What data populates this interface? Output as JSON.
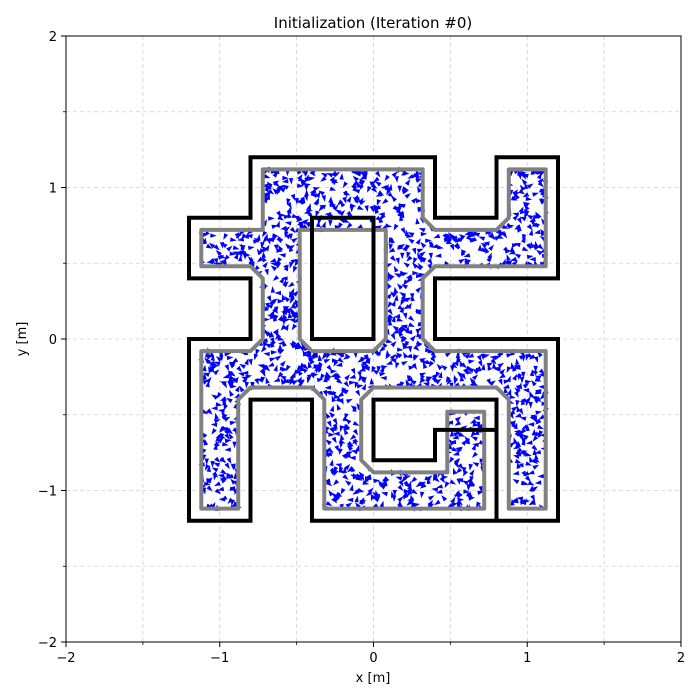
{
  "chart_data": {
    "type": "scatter",
    "title": "Initialization (Iteration #0)",
    "xlabel": "x [m]",
    "ylabel": "y [m]",
    "xlim": [
      -2,
      2
    ],
    "ylim": [
      -2,
      2
    ],
    "grid": true,
    "xticks": [
      {
        "value": -2,
        "label": "−2"
      },
      {
        "value": -1,
        "label": "−1"
      },
      {
        "value": 0,
        "label": "0"
      },
      {
        "value": 1,
        "label": "1"
      },
      {
        "value": 2,
        "label": "2"
      }
    ],
    "yticks": [
      {
        "value": -2,
        "label": "−2"
      },
      {
        "value": -1,
        "label": "−1"
      },
      {
        "value": 0,
        "label": "0"
      },
      {
        "value": 1,
        "label": "1"
      },
      {
        "value": 2,
        "label": "2"
      }
    ],
    "minor_ticks": [
      -1.5,
      -0.5,
      0.5,
      1.5
    ],
    "series": [
      {
        "kind": "outer_boundary",
        "color": "#000000",
        "points": [
          [
            -0.8,
            1.2
          ],
          [
            0.4,
            1.2
          ],
          [
            0.4,
            0.8
          ],
          [
            0.8,
            0.8
          ],
          [
            0.8,
            1.2
          ],
          [
            1.2,
            1.2
          ],
          [
            1.2,
            0.4
          ],
          [
            0.4,
            0.4
          ],
          [
            0.4,
            0.0
          ],
          [
            1.2,
            0.0
          ],
          [
            1.2,
            -1.2
          ],
          [
            0.8,
            -1.2
          ],
          [
            0.8,
            -0.4
          ],
          [
            0.0,
            -0.4
          ],
          [
            0.0,
            -0.8
          ],
          [
            0.4,
            -0.8
          ],
          [
            0.4,
            -0.6
          ],
          [
            0.8,
            -0.6
          ],
          [
            0.8,
            -1.2
          ],
          [
            -0.4,
            -1.2
          ],
          [
            -0.4,
            -0.4
          ],
          [
            -0.8,
            -0.4
          ],
          [
            -0.8,
            -1.2
          ],
          [
            -1.2,
            -1.2
          ],
          [
            -1.2,
            0.0
          ],
          [
            -0.8,
            0.0
          ],
          [
            -0.8,
            0.4
          ],
          [
            -1.2,
            0.4
          ],
          [
            -1.2,
            0.8
          ],
          [
            -0.8,
            0.8
          ]
        ]
      },
      {
        "kind": "inner_boundary",
        "color": "#000000",
        "points": [
          [
            -0.4,
            0.8
          ],
          [
            0.0,
            0.8
          ],
          [
            0.0,
            0.0
          ],
          [
            -0.4,
            0.0
          ]
        ]
      },
      {
        "kind": "shrunk_boundary",
        "color": "#808080",
        "points": [
          [
            -0.72,
            1.12
          ],
          [
            0.32,
            1.12
          ],
          [
            0.32,
            0.8
          ],
          [
            0.4,
            0.72
          ],
          [
            0.8,
            0.72
          ],
          [
            0.88,
            0.8
          ],
          [
            0.88,
            1.12
          ],
          [
            1.12,
            1.12
          ],
          [
            1.12,
            0.48
          ],
          [
            0.4,
            0.48
          ],
          [
            0.32,
            0.4
          ],
          [
            0.32,
            0.0
          ],
          [
            0.4,
            -0.08
          ],
          [
            1.12,
            -0.08
          ],
          [
            1.12,
            -1.12
          ],
          [
            0.88,
            -1.12
          ],
          [
            0.88,
            -0.4
          ],
          [
            0.8,
            -0.32
          ],
          [
            0.0,
            -0.32
          ],
          [
            -0.08,
            -0.4
          ],
          [
            -0.08,
            -0.8
          ],
          [
            0.0,
            -0.88
          ],
          [
            0.48,
            -0.88
          ],
          [
            0.48,
            -0.48
          ],
          [
            0.72,
            -0.48
          ],
          [
            0.72,
            -1.12
          ],
          [
            -0.32,
            -1.12
          ],
          [
            -0.32,
            -0.4
          ],
          [
            -0.4,
            -0.32
          ],
          [
            -0.8,
            -0.32
          ],
          [
            -0.88,
            -0.4
          ],
          [
            -0.88,
            -1.12
          ],
          [
            -1.12,
            -1.12
          ],
          [
            -1.12,
            -0.08
          ],
          [
            -0.8,
            -0.08
          ],
          [
            -0.72,
            0.0
          ],
          [
            -0.72,
            0.4
          ],
          [
            -0.8,
            0.48
          ],
          [
            -1.12,
            0.48
          ],
          [
            -1.12,
            0.72
          ],
          [
            -0.72,
            0.72
          ]
        ]
      },
      {
        "kind": "shrunk_hole",
        "color": "#808080",
        "points": [
          [
            -0.48,
            0.72
          ],
          [
            0.08,
            0.72
          ],
          [
            0.08,
            0.0
          ],
          [
            0.0,
            -0.08
          ],
          [
            -0.4,
            -0.08
          ],
          [
            -0.48,
            0.0
          ]
        ]
      },
      {
        "kind": "particles",
        "marker": "arrow",
        "color": "#0000ff",
        "count": 1600,
        "region": "inside shrunk_boundary, outside shrunk_hole",
        "heading": "random"
      }
    ]
  }
}
